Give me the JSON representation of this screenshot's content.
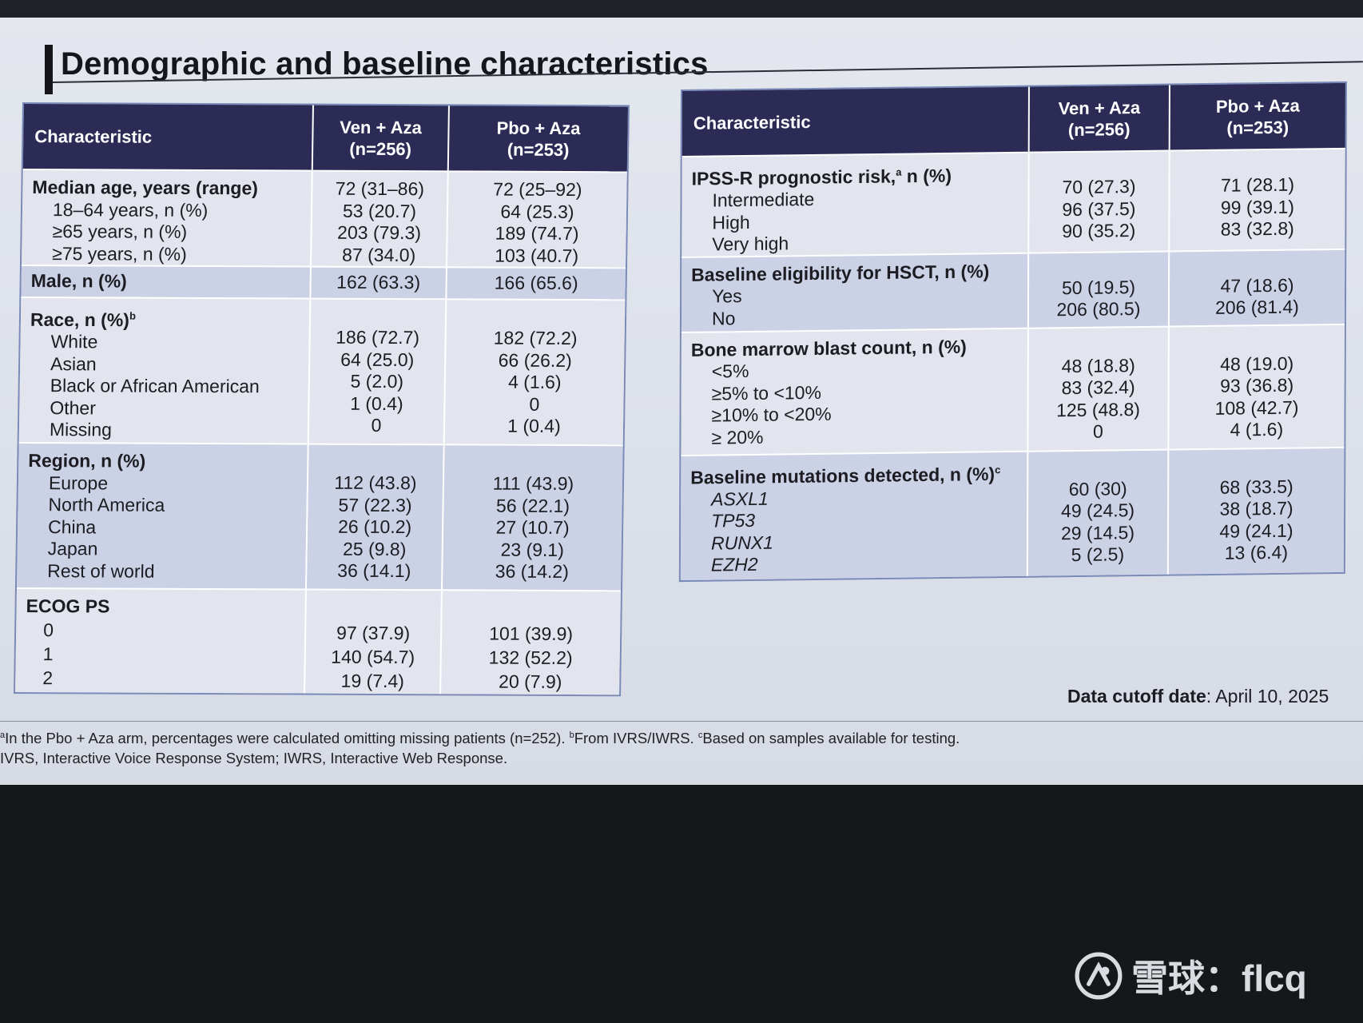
{
  "title": "Demographic and baseline characteristics",
  "left_table": {
    "headers": {
      "characteristic": "Characteristic",
      "col1_line1": "Ven + Aza",
      "col1_line2": "(n=256)",
      "col2_line1": "Pbo + Aza",
      "col2_line2": "(n=253)"
    },
    "age": {
      "label": "Median age, years (range)",
      "label_value": [
        "72 (31–86)",
        "72 (25–92)"
      ],
      "rows": [
        {
          "label": "18–64 years, n (%)",
          "ven": "53 (20.7)",
          "pbo": "64 (25.3)"
        },
        {
          "label": "≥65 years, n (%)",
          "ven": "203 (79.3)",
          "pbo": "189 (74.7)"
        },
        {
          "label": "≥75 years, n (%)",
          "ven": "87 (34.0)",
          "pbo": "103 (40.7)"
        }
      ]
    },
    "male": {
      "label": "Male, n (%)",
      "ven": "162 (63.3)",
      "pbo": "166 (65.6)"
    },
    "race": {
      "label": "Race, n (%)",
      "sup": "b",
      "rows": [
        {
          "label": "White",
          "ven": "186 (72.7)",
          "pbo": "182 (72.2)"
        },
        {
          "label": "Asian",
          "ven": "64 (25.0)",
          "pbo": "66 (26.2)"
        },
        {
          "label": "Black or African American",
          "ven": "5 (2.0)",
          "pbo": "4 (1.6)"
        },
        {
          "label": "Other",
          "ven": "1 (0.4)",
          "pbo": "0"
        },
        {
          "label": "Missing",
          "ven": "0",
          "pbo": "1 (0.4)"
        }
      ]
    },
    "region": {
      "label": "Region, n (%)",
      "rows": [
        {
          "label": "Europe",
          "ven": "112 (43.8)",
          "pbo": "111 (43.9)"
        },
        {
          "label": "North America",
          "ven": "57 (22.3)",
          "pbo": "56 (22.1)"
        },
        {
          "label": "China",
          "ven": "26 (10.2)",
          "pbo": "27 (10.7)"
        },
        {
          "label": "Japan",
          "ven": "25 (9.8)",
          "pbo": "23 (9.1)"
        },
        {
          "label": "Rest of world",
          "ven": "36 (14.1)",
          "pbo": "36 (14.2)"
        }
      ]
    },
    "ecog": {
      "label": "ECOG PS",
      "rows": [
        {
          "label": "0",
          "ven": "97 (37.9)",
          "pbo": "101 (39.9)"
        },
        {
          "label": "1",
          "ven": "140 (54.7)",
          "pbo": "132 (52.2)"
        },
        {
          "label": "2",
          "ven": "19 (7.4)",
          "pbo": "20 (7.9)"
        }
      ]
    }
  },
  "right_table": {
    "headers": {
      "characteristic": "Characteristic",
      "col1_line1": "Ven + Aza",
      "col1_line2": "(n=256)",
      "col2_line1": "Pbo + Aza",
      "col2_line2": "(n=253)"
    },
    "ipss": {
      "label": "IPSS-R prognostic risk,",
      "sup": "a",
      "label_suffix": " n (%)",
      "rows": [
        {
          "label": "Intermediate",
          "ven": "70 (27.3)",
          "pbo": "71 (28.1)"
        },
        {
          "label": "High",
          "ven": "96 (37.5)",
          "pbo": "99 (39.1)"
        },
        {
          "label": "Very high",
          "ven": "90 (35.2)",
          "pbo": "83 (32.8)"
        }
      ]
    },
    "hsct": {
      "label": "Baseline eligibility for HSCT, n (%)",
      "rows": [
        {
          "label": "Yes",
          "ven": "50 (19.5)",
          "pbo": "47 (18.6)"
        },
        {
          "label": "No",
          "ven": "206 (80.5)",
          "pbo": "206 (81.4)"
        }
      ]
    },
    "blast": {
      "label": "Bone marrow blast count, n (%)",
      "rows": [
        {
          "label": "<5%",
          "ven": "48 (18.8)",
          "pbo": "48 (19.0)"
        },
        {
          "label": "≥5% to <10%",
          "ven": "83 (32.4)",
          "pbo": "93 (36.8)"
        },
        {
          "label": "≥10% to <20%",
          "ven": "125 (48.8)",
          "pbo": "108 (42.7)"
        },
        {
          "label": "≥ 20%",
          "ven": "0",
          "pbo": "4 (1.6)"
        }
      ]
    },
    "mutations": {
      "label": "Baseline mutations detected, n (%)",
      "sup": "c",
      "rows": [
        {
          "label": "ASXL1",
          "ven": "60 (30)",
          "pbo": "68 (33.5)"
        },
        {
          "label": "TP53",
          "ven": "49 (24.5)",
          "pbo": "38 (18.7)"
        },
        {
          "label": "RUNX1",
          "ven": "29 (14.5)",
          "pbo": "49 (24.1)"
        },
        {
          "label": "EZH2",
          "ven": "5 (2.5)",
          "pbo": "13 (6.4)"
        }
      ]
    }
  },
  "cutoff": {
    "label": "Data cutoff date",
    "value": ": April 10, 2025"
  },
  "footnotes": {
    "sup_a": "a",
    "text_a": "In the Pbo + Aza arm, percentages were calculated omitting missing patients (n=252). ",
    "sup_b": "b",
    "text_b": "From IVRS/IWRS. ",
    "sup_c": "c",
    "text_c": "Based on samples available for testing.",
    "line2": "IVRS, Interactive Voice Response System; IWRS, Interactive Web Response."
  },
  "watermark": {
    "text": "雪球：flcq",
    "icon": "xueqiu-logo-icon"
  }
}
